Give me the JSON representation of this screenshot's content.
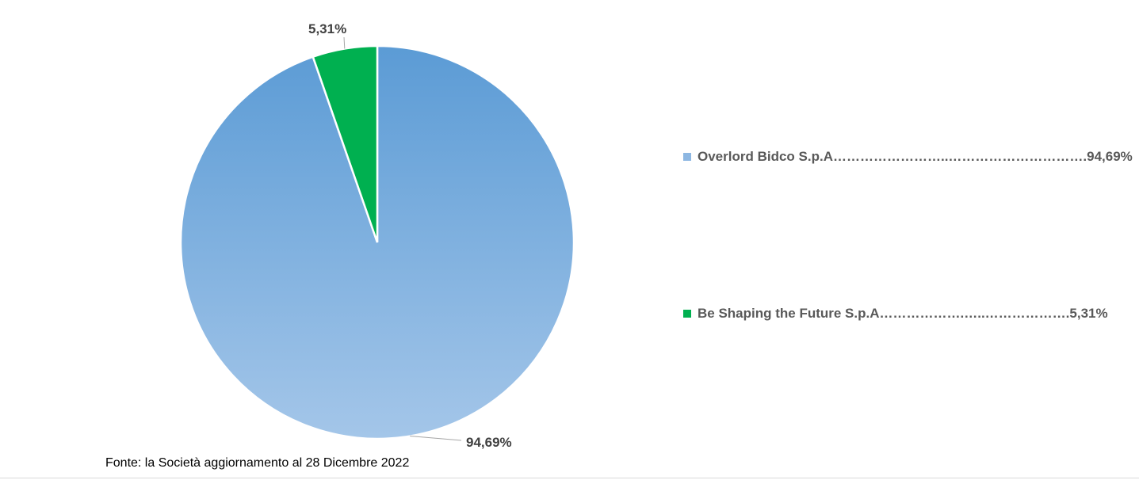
{
  "chart_data": {
    "type": "pie",
    "categories": [
      "Overlord Bidco S.p.A",
      "Be Shaping the Future S.p.A"
    ],
    "values": [
      94.69,
      5.31
    ],
    "value_labels": [
      "94,69%",
      "5,31%"
    ],
    "colors": [
      "#6fa6dc",
      "#00b050"
    ],
    "legend": {
      "placement": "right",
      "entries": [
        "Overlord Bidco S.p.A……………………..………………………….94,69%",
        "Be Shaping the Future S.p.A……………….…..……………….5,31%"
      ]
    },
    "start_angle": "12 o'clock",
    "direction": "clockwise"
  },
  "source_note": "Fonte: la Società aggiornamento al 28 Dicembre 2022"
}
